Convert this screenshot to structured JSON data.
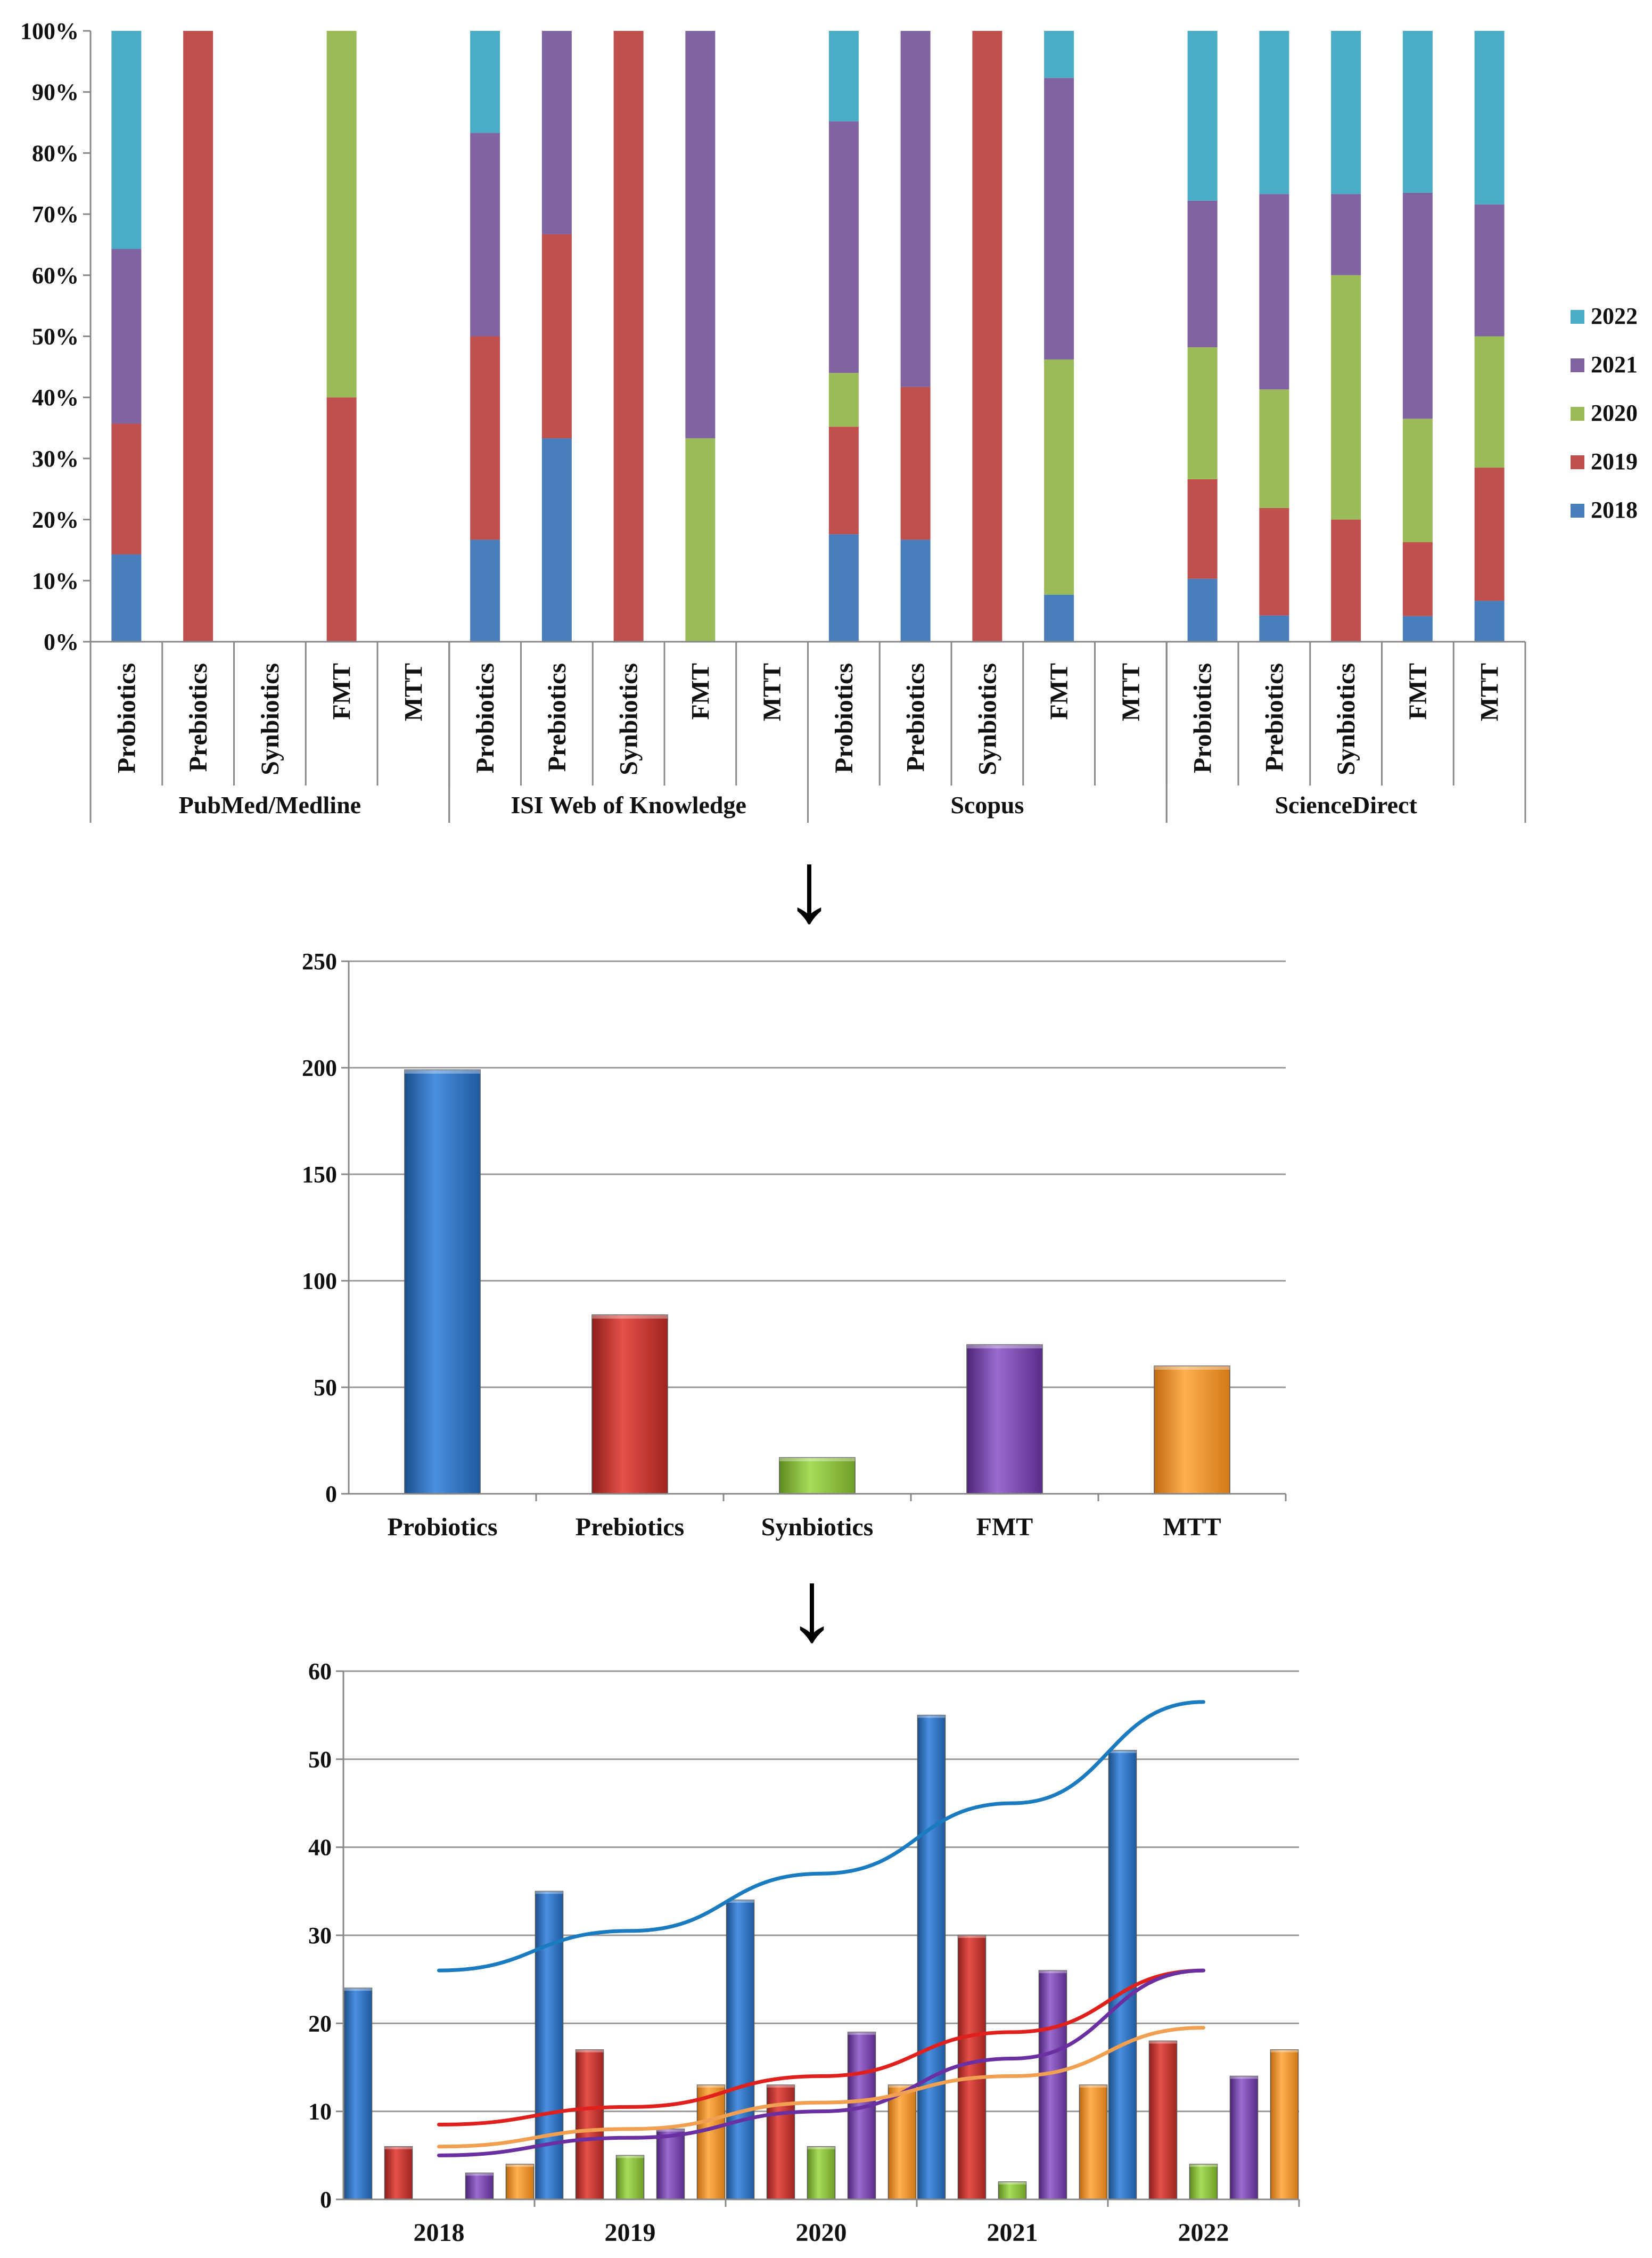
{
  "colors": {
    "y2018": "#4a7ebb",
    "y2019": "#c0504d",
    "y2020": "#9bbb59",
    "y2021": "#8064a2",
    "y2022": "#4bacc6",
    "probiotics": "#2f73c4",
    "prebiotics": "#d0332e",
    "synbiotics": "#8ac33c",
    "fmt": "#7e45b0",
    "mtt": "#f39020",
    "trend_probiotics": "#1a7bc0",
    "trend_prebiotics": "#e0201c",
    "trend_fmt": "#6a2fa0",
    "trend_mtt": "#f0a050"
  },
  "arrows": [
    "↓",
    "↓"
  ],
  "chart_data": [
    {
      "type": "bar",
      "stacked": true,
      "percent": true,
      "y_tick_labels": [
        "0%",
        "10%",
        "20%",
        "30%",
        "40%",
        "50%",
        "60%",
        "70%",
        "80%",
        "90%",
        "100%"
      ],
      "ylim": [
        0,
        100
      ],
      "legend_position": "right",
      "legend": [
        "2022",
        "2021",
        "2020",
        "2019",
        "2018"
      ],
      "stack_order": [
        "2018",
        "2019",
        "2020",
        "2021",
        "2022"
      ],
      "groups": [
        {
          "name": "PubMed/Medline",
          "categories": [
            {
              "label": "Probiotics",
              "values": [
                14.3,
                21.4,
                0,
                28.6,
                35.7
              ]
            },
            {
              "label": "Prebiotics",
              "values": [
                0,
                100,
                0,
                0,
                0
              ]
            },
            {
              "label": "Synbiotics",
              "values": [
                0,
                0,
                0,
                0,
                0
              ]
            },
            {
              "label": "FMT",
              "values": [
                0,
                40,
                60,
                0,
                0
              ]
            },
            {
              "label": "MTT",
              "values": [
                0,
                0,
                0,
                0,
                0
              ]
            }
          ]
        },
        {
          "name": "ISI Web of Knowledge",
          "categories": [
            {
              "label": "Probiotics",
              "values": [
                16.7,
                33.3,
                0,
                33.3,
                16.7
              ]
            },
            {
              "label": "Prebiotics",
              "values": [
                33.3,
                33.4,
                0,
                33.3,
                0
              ]
            },
            {
              "label": "Synbiotics",
              "values": [
                0,
                100,
                0,
                0,
                0
              ]
            },
            {
              "label": "FMT",
              "values": [
                0,
                0,
                33.3,
                66.7,
                0
              ]
            },
            {
              "label": "MTT",
              "values": [
                0,
                0,
                0,
                0,
                0
              ]
            }
          ]
        },
        {
          "name": "Scopus",
          "categories": [
            {
              "label": "Probiotics",
              "values": [
                17.6,
                17.6,
                8.8,
                41.2,
                14.8
              ]
            },
            {
              "label": "Prebiotics",
              "values": [
                16.7,
                25,
                0,
                58.3,
                0
              ]
            },
            {
              "label": "Synbiotics",
              "values": [
                0,
                100,
                0,
                0,
                0
              ]
            },
            {
              "label": "FMT",
              "values": [
                7.7,
                0,
                38.5,
                46.1,
                7.7
              ]
            },
            {
              "label": "MTT",
              "values": [
                0,
                0,
                0,
                0,
                0
              ]
            }
          ]
        },
        {
          "name": "ScienceDirect",
          "categories": [
            {
              "label": "Probiotics",
              "values": [
                10.3,
                16.3,
                21.6,
                24,
                27.8
              ]
            },
            {
              "label": "Prebiotics",
              "values": [
                4.3,
                17.6,
                19.4,
                32,
                26.7
              ]
            },
            {
              "label": "Synbiotics",
              "values": [
                0,
                20,
                40,
                13.3,
                26.7
              ]
            },
            {
              "label": "FMT",
              "values": [
                4.2,
                12.1,
                20.2,
                37,
                26.5
              ]
            },
            {
              "label": "MTT",
              "values": [
                6.7,
                21.8,
                21.5,
                21.6,
                28.4
              ]
            }
          ]
        }
      ]
    },
    {
      "type": "bar",
      "categories": [
        "Probiotics",
        "Prebiotics",
        "Synbiotics",
        "FMT",
        "MTT"
      ],
      "values": [
        199,
        84,
        17,
        70,
        60
      ],
      "y_tick_labels": [
        "0",
        "50",
        "100",
        "150",
        "200",
        "250"
      ],
      "ylim": [
        0,
        250
      ],
      "grid": true
    },
    {
      "type": "bar",
      "categories": [
        "2018",
        "2019",
        "2020",
        "2021",
        "2022"
      ],
      "series": [
        {
          "name": "Probiotics",
          "values": [
            24,
            35,
            34,
            55,
            51
          ]
        },
        {
          "name": "Prebiotics",
          "values": [
            6,
            17,
            13,
            30,
            18
          ]
        },
        {
          "name": "Synbiotics",
          "values": [
            0,
            5,
            6,
            2,
            4
          ]
        },
        {
          "name": "FMT",
          "values": [
            3,
            8,
            19,
            26,
            14
          ]
        },
        {
          "name": "MTT",
          "values": [
            4,
            13,
            13,
            13,
            17
          ]
        }
      ],
      "trendlines": [
        {
          "name": "Probiotics",
          "values": [
            26,
            30.5,
            37,
            45,
            56.5
          ]
        },
        {
          "name": "Prebiotics",
          "values": [
            8.5,
            10.5,
            14,
            19,
            26
          ]
        },
        {
          "name": "FMT",
          "values": [
            5,
            7,
            10,
            16,
            26
          ]
        },
        {
          "name": "MTT",
          "values": [
            6,
            8,
            11,
            14,
            19.5
          ]
        }
      ],
      "y_tick_labels": [
        "0",
        "10",
        "20",
        "30",
        "40",
        "50",
        "60"
      ],
      "ylim": [
        0,
        60
      ],
      "grid": true
    }
  ]
}
